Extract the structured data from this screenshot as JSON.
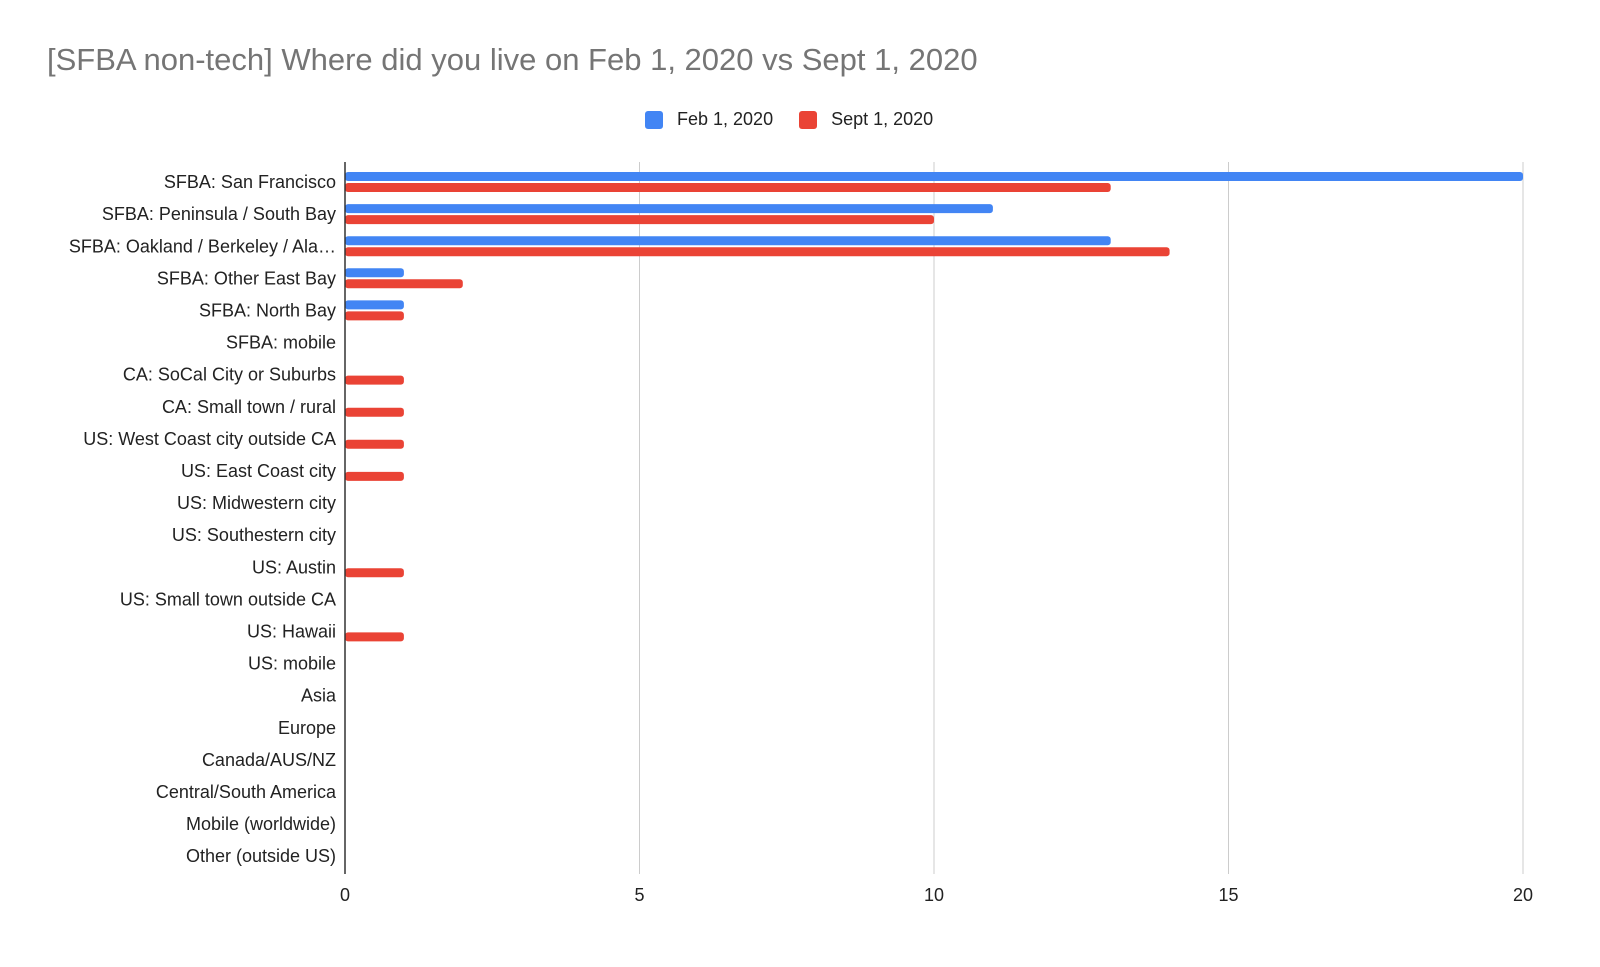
{
  "chart_data": {
    "type": "bar",
    "orientation": "horizontal",
    "title": "[SFBA non-tech] Where did you live on Feb 1, 2020 vs Sept 1, 2020",
    "xlabel": "",
    "ylabel": "",
    "xlim": [
      0,
      20
    ],
    "x_ticks": [
      "0",
      "5",
      "10",
      "15",
      "20"
    ],
    "grid": true,
    "legend_position": "top-center",
    "categories": [
      "SFBA: San Francisco",
      "SFBA: Peninsula / South Bay",
      "SFBA: Oakland / Berkeley / Ala…",
      "SFBA: Other East Bay",
      "SFBA: North Bay",
      "SFBA: mobile",
      "CA: SoCal City or Suburbs",
      "CA: Small town / rural",
      "US: West Coast city outside CA",
      "US: East Coast city",
      "US: Midwestern city",
      "US: Southestern city",
      "US: Austin",
      "US: Small town outside CA",
      "US: Hawaii",
      "US: mobile",
      "Asia",
      "Europe",
      "Canada/AUS/NZ",
      "Central/South America",
      "Mobile (worldwide)",
      "Other (outside US)"
    ],
    "series": [
      {
        "name": "Feb 1, 2020",
        "color": "#4285f4",
        "values": [
          20,
          11,
          13,
          1,
          1,
          0,
          0,
          0,
          0,
          0,
          0,
          0,
          0,
          0,
          0,
          0,
          0,
          0,
          0,
          0,
          0,
          0
        ]
      },
      {
        "name": "Sept 1, 2020",
        "color": "#ea4335",
        "values": [
          13,
          10,
          14,
          2,
          1,
          0,
          1,
          1,
          1,
          1,
          0,
          0,
          1,
          0,
          1,
          0,
          0,
          0,
          0,
          0,
          0,
          0
        ]
      }
    ]
  }
}
